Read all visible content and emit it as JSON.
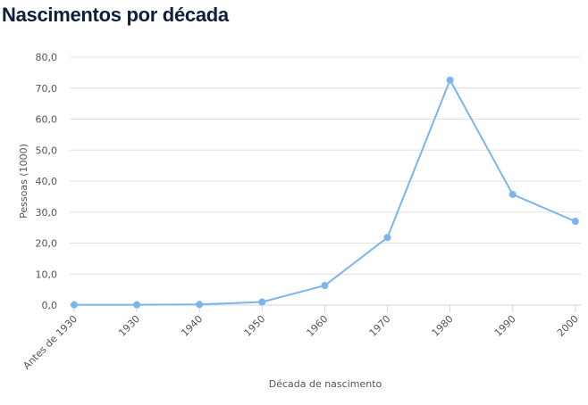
{
  "title": "Nascimentos por década",
  "chart_data": {
    "type": "line",
    "title": "Nascimentos por década",
    "xlabel": "Década de nascimento",
    "ylabel": "Pessoas (1000)",
    "categories": [
      "Antes de 1930",
      "1930",
      "1940",
      "1950",
      "1960",
      "1970",
      "1980",
      "1990",
      "2000"
    ],
    "values": [
      0.1,
      0.1,
      0.2,
      1.0,
      6.3,
      21.8,
      72.6,
      35.7,
      27.0
    ],
    "ylim": [
      0,
      80
    ],
    "yticks": [
      "0,0",
      "10,0",
      "20,0",
      "30,0",
      "40,0",
      "50,0",
      "60,0",
      "70,0",
      "80,0"
    ],
    "grid": true,
    "legend": "none",
    "color": "#7cb5ec"
  }
}
